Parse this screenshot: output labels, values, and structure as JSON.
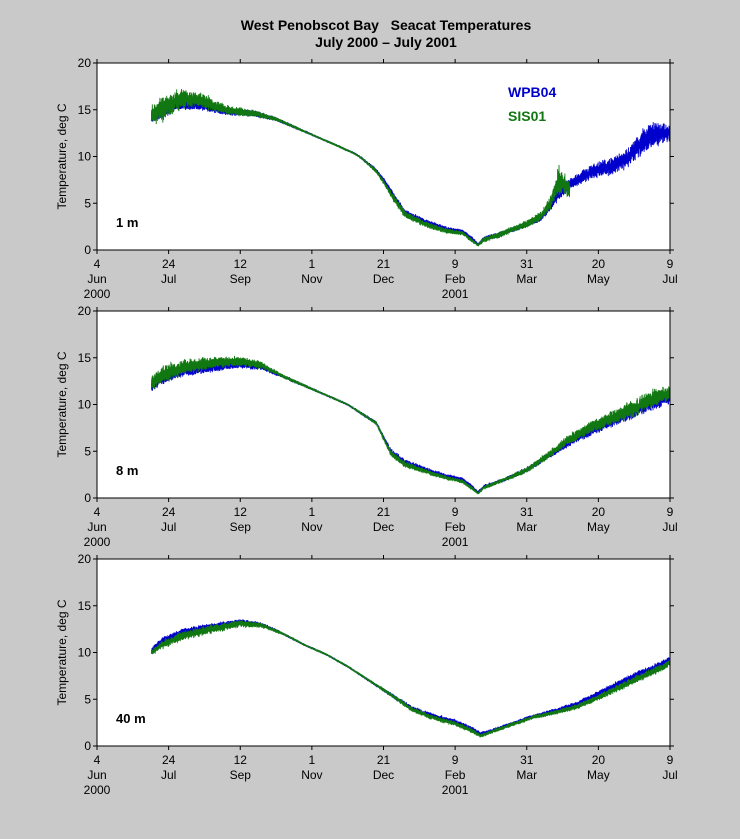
{
  "figure": {
    "title_line1": "West Penobscot Bay   Seacat Temperatures",
    "title_line2": "July 2000 – July 2001"
  },
  "legend": {
    "entries": [
      {
        "name": "WPB04",
        "color": "#0000cc"
      },
      {
        "name": "SIS01",
        "color": "#117711"
      }
    ],
    "placement": "top-right of first panel"
  },
  "chart_data": [
    {
      "type": "line",
      "panel_label": "1 m",
      "ylabel": "Temperature, deg C",
      "ylim": [
        0,
        20
      ],
      "yticks": [
        0,
        5,
        10,
        15,
        20
      ],
      "xlim": [
        0,
        400
      ],
      "xticks": [
        {
          "day": 0,
          "label": "4",
          "month": "Jun",
          "year": "2000"
        },
        {
          "day": 50,
          "label": "24",
          "month": "Jul",
          "year": ""
        },
        {
          "day": 100,
          "label": "12",
          "month": "Sep",
          "year": ""
        },
        {
          "day": 150,
          "label": "1",
          "month": "Nov",
          "year": ""
        },
        {
          "day": 200,
          "label": "21",
          "month": "Dec",
          "year": ""
        },
        {
          "day": 250,
          "label": "9",
          "month": "Feb",
          "year": "2001"
        },
        {
          "day": 300,
          "label": "31",
          "month": "Mar",
          "year": ""
        },
        {
          "day": 350,
          "label": "20",
          "month": "May",
          "year": ""
        },
        {
          "day": 400,
          "label": "9",
          "month": "Jul",
          "year": ""
        }
      ],
      "series": [
        {
          "name": "WPB04",
          "color": "#0000cc",
          "x": [
            38,
            45,
            55,
            70,
            90,
            110,
            125,
            140,
            155,
            170,
            180,
            185,
            195,
            200,
            205,
            215,
            230,
            245,
            255,
            262,
            266,
            270,
            280,
            290,
            300,
            310,
            318,
            322,
            330,
            340,
            350,
            360,
            370,
            380,
            390,
            400
          ],
          "y": [
            14.2,
            14.5,
            15.5,
            15.5,
            14.8,
            14.6,
            14.0,
            13.0,
            12.0,
            11.0,
            10.3,
            9.8,
            8.5,
            7.5,
            6.3,
            4.0,
            3.0,
            2.2,
            2.0,
            1.2,
            0.6,
            1.2,
            1.6,
            2.2,
            2.7,
            3.4,
            5.0,
            6.0,
            7.0,
            8.0,
            8.6,
            9.0,
            9.8,
            11.5,
            12.5,
            12.5
          ],
          "noise": [
            0.8,
            1.0,
            0.8,
            0.7,
            0.6,
            0.5,
            0.3,
            0.2,
            0.15,
            0.15,
            0.15,
            0.2,
            0.3,
            0.4,
            0.5,
            0.5,
            0.4,
            0.35,
            0.3,
            0.3,
            0.2,
            0.4,
            0.4,
            0.4,
            0.4,
            0.5,
            0.8,
            1.2,
            1.0,
            1.2,
            1.3,
            1.5,
            1.6,
            2.2,
            2.2,
            1.2
          ]
        },
        {
          "name": "SIS01",
          "color": "#117711",
          "x": [
            38,
            45,
            55,
            70,
            90,
            110,
            125,
            140,
            155,
            170,
            180,
            185,
            195,
            200,
            205,
            215,
            230,
            245,
            255,
            262,
            266,
            270,
            280,
            290,
            300,
            310,
            318,
            322,
            330
          ],
          "y": [
            14.5,
            15.0,
            16.0,
            16.2,
            15.0,
            14.6,
            14.0,
            13.0,
            12.0,
            11.0,
            10.3,
            9.8,
            8.4,
            7.3,
            6.0,
            3.8,
            2.7,
            2.0,
            1.8,
            1.0,
            0.5,
            1.1,
            1.6,
            2.2,
            2.8,
            3.6,
            5.5,
            7.5,
            6.5
          ],
          "noise": [
            1.5,
            2.2,
            1.8,
            1.4,
            0.8,
            0.6,
            0.3,
            0.2,
            0.15,
            0.15,
            0.15,
            0.2,
            0.3,
            0.4,
            0.6,
            0.6,
            0.5,
            0.4,
            0.35,
            0.3,
            0.2,
            0.5,
            0.5,
            0.5,
            0.6,
            0.8,
            1.2,
            2.4,
            1.4
          ]
        }
      ]
    },
    {
      "type": "line",
      "panel_label": "8 m",
      "ylabel": "Temperature, deg C",
      "ylim": [
        0,
        20
      ],
      "yticks": [
        0,
        5,
        10,
        15,
        20
      ],
      "xlim": [
        0,
        400
      ],
      "xticks": [
        {
          "day": 0,
          "label": "4",
          "month": "Jun",
          "year": "2000"
        },
        {
          "day": 50,
          "label": "24",
          "month": "Jul",
          "year": ""
        },
        {
          "day": 100,
          "label": "12",
          "month": "Sep",
          "year": ""
        },
        {
          "day": 150,
          "label": "1",
          "month": "Nov",
          "year": ""
        },
        {
          "day": 200,
          "label": "21",
          "month": "Dec",
          "year": ""
        },
        {
          "day": 250,
          "label": "9",
          "month": "Feb",
          "year": "2001"
        },
        {
          "day": 300,
          "label": "31",
          "month": "Mar",
          "year": ""
        },
        {
          "day": 350,
          "label": "20",
          "month": "May",
          "year": ""
        },
        {
          "day": 400,
          "label": "9",
          "month": "Jul",
          "year": ""
        }
      ],
      "series": [
        {
          "name": "WPB04",
          "color": "#0000cc",
          "x": [
            38,
            45,
            60,
            80,
            100,
            115,
            130,
            145,
            160,
            175,
            185,
            195,
            200,
            205,
            215,
            230,
            245,
            255,
            262,
            266,
            270,
            285,
            300,
            315,
            330,
            345,
            360,
            375,
            390,
            400
          ],
          "y": [
            12.0,
            12.8,
            13.5,
            14.0,
            14.3,
            14.0,
            13.0,
            12.0,
            11.0,
            10.0,
            9.0,
            8.0,
            6.5,
            5.0,
            3.8,
            3.0,
            2.3,
            2.0,
            1.2,
            0.6,
            1.2,
            2.0,
            3.0,
            4.5,
            6.0,
            7.2,
            8.2,
            9.2,
            10.3,
            10.8
          ],
          "noise": [
            1.0,
            1.0,
            0.9,
            0.8,
            0.6,
            0.5,
            0.3,
            0.2,
            0.15,
            0.15,
            0.2,
            0.3,
            0.4,
            0.5,
            0.5,
            0.4,
            0.35,
            0.3,
            0.3,
            0.2,
            0.3,
            0.3,
            0.4,
            0.5,
            0.7,
            0.8,
            0.9,
            1.0,
            1.2,
            1.2
          ]
        },
        {
          "name": "SIS01",
          "color": "#117711",
          "x": [
            38,
            45,
            60,
            80,
            100,
            115,
            130,
            145,
            160,
            175,
            185,
            195,
            200,
            205,
            215,
            230,
            245,
            255,
            262,
            266,
            270,
            285,
            300,
            315,
            330,
            345,
            360,
            375,
            390,
            400
          ],
          "y": [
            12.3,
            13.2,
            14.0,
            14.5,
            14.6,
            14.2,
            13.0,
            12.0,
            11.0,
            10.0,
            9.0,
            8.0,
            6.4,
            4.8,
            3.6,
            2.8,
            2.1,
            1.8,
            1.0,
            0.5,
            1.1,
            2.0,
            3.0,
            4.6,
            6.3,
            7.6,
            8.6,
            9.6,
            10.8,
            11.2
          ],
          "noise": [
            1.4,
            1.6,
            1.3,
            1.0,
            0.8,
            0.6,
            0.3,
            0.2,
            0.15,
            0.15,
            0.2,
            0.3,
            0.4,
            0.5,
            0.5,
            0.4,
            0.35,
            0.3,
            0.3,
            0.2,
            0.3,
            0.3,
            0.5,
            0.6,
            0.9,
            1.0,
            1.2,
            1.5,
            1.6,
            1.4
          ]
        }
      ]
    },
    {
      "type": "line",
      "panel_label": "40 m",
      "ylabel": "Temperature, deg C",
      "ylim": [
        0,
        20
      ],
      "yticks": [
        0,
        5,
        10,
        15,
        20
      ],
      "xlim": [
        0,
        400
      ],
      "xticks": [
        {
          "day": 0,
          "label": "4",
          "month": "Jun",
          "year": "2000"
        },
        {
          "day": 50,
          "label": "24",
          "month": "Jul",
          "year": ""
        },
        {
          "day": 100,
          "label": "12",
          "month": "Sep",
          "year": ""
        },
        {
          "day": 150,
          "label": "1",
          "month": "Nov",
          "year": ""
        },
        {
          "day": 200,
          "label": "21",
          "month": "Dec",
          "year": ""
        },
        {
          "day": 250,
          "label": "9",
          "month": "Feb",
          "year": "2001"
        },
        {
          "day": 300,
          "label": "31",
          "month": "Mar",
          "year": ""
        },
        {
          "day": 350,
          "label": "20",
          "month": "May",
          "year": ""
        },
        {
          "day": 400,
          "label": "9",
          "month": "Jul",
          "year": ""
        }
      ],
      "series": [
        {
          "name": "WPB04",
          "color": "#0000cc",
          "x": [
            38,
            45,
            60,
            80,
            100,
            115,
            130,
            145,
            160,
            175,
            190,
            205,
            220,
            235,
            250,
            262,
            268,
            275,
            290,
            305,
            320,
            335,
            350,
            365,
            380,
            395,
            400
          ],
          "y": [
            10.2,
            11.2,
            12.2,
            12.8,
            13.3,
            13.0,
            12.0,
            10.8,
            9.8,
            8.5,
            7.0,
            5.5,
            4.0,
            3.2,
            2.6,
            1.8,
            1.3,
            1.6,
            2.4,
            3.2,
            3.8,
            4.5,
            5.6,
            6.7,
            7.8,
            8.8,
            9.3
          ],
          "noise": [
            0.4,
            0.6,
            0.6,
            0.5,
            0.4,
            0.3,
            0.2,
            0.15,
            0.15,
            0.15,
            0.2,
            0.3,
            0.4,
            0.4,
            0.4,
            0.4,
            0.3,
            0.3,
            0.3,
            0.3,
            0.35,
            0.4,
            0.5,
            0.6,
            0.6,
            0.6,
            0.5
          ]
        },
        {
          "name": "SIS01",
          "color": "#117711",
          "x": [
            38,
            45,
            60,
            80,
            100,
            115,
            130,
            145,
            160,
            175,
            190,
            205,
            220,
            235,
            250,
            262,
            268,
            275,
            290,
            305,
            320,
            335,
            350,
            365,
            380,
            395,
            400
          ],
          "y": [
            10.0,
            10.8,
            11.8,
            12.5,
            13.1,
            12.9,
            12.0,
            10.8,
            9.8,
            8.5,
            7.0,
            5.5,
            3.9,
            3.0,
            2.4,
            1.6,
            1.1,
            1.5,
            2.3,
            3.1,
            3.6,
            4.2,
            5.2,
            6.3,
            7.4,
            8.4,
            9.0
          ],
          "noise": [
            0.5,
            0.7,
            0.8,
            0.7,
            0.6,
            0.4,
            0.2,
            0.15,
            0.15,
            0.15,
            0.2,
            0.3,
            0.4,
            0.4,
            0.4,
            0.4,
            0.3,
            0.3,
            0.3,
            0.3,
            0.35,
            0.4,
            0.5,
            0.6,
            0.6,
            0.7,
            0.6
          ]
        }
      ]
    }
  ]
}
